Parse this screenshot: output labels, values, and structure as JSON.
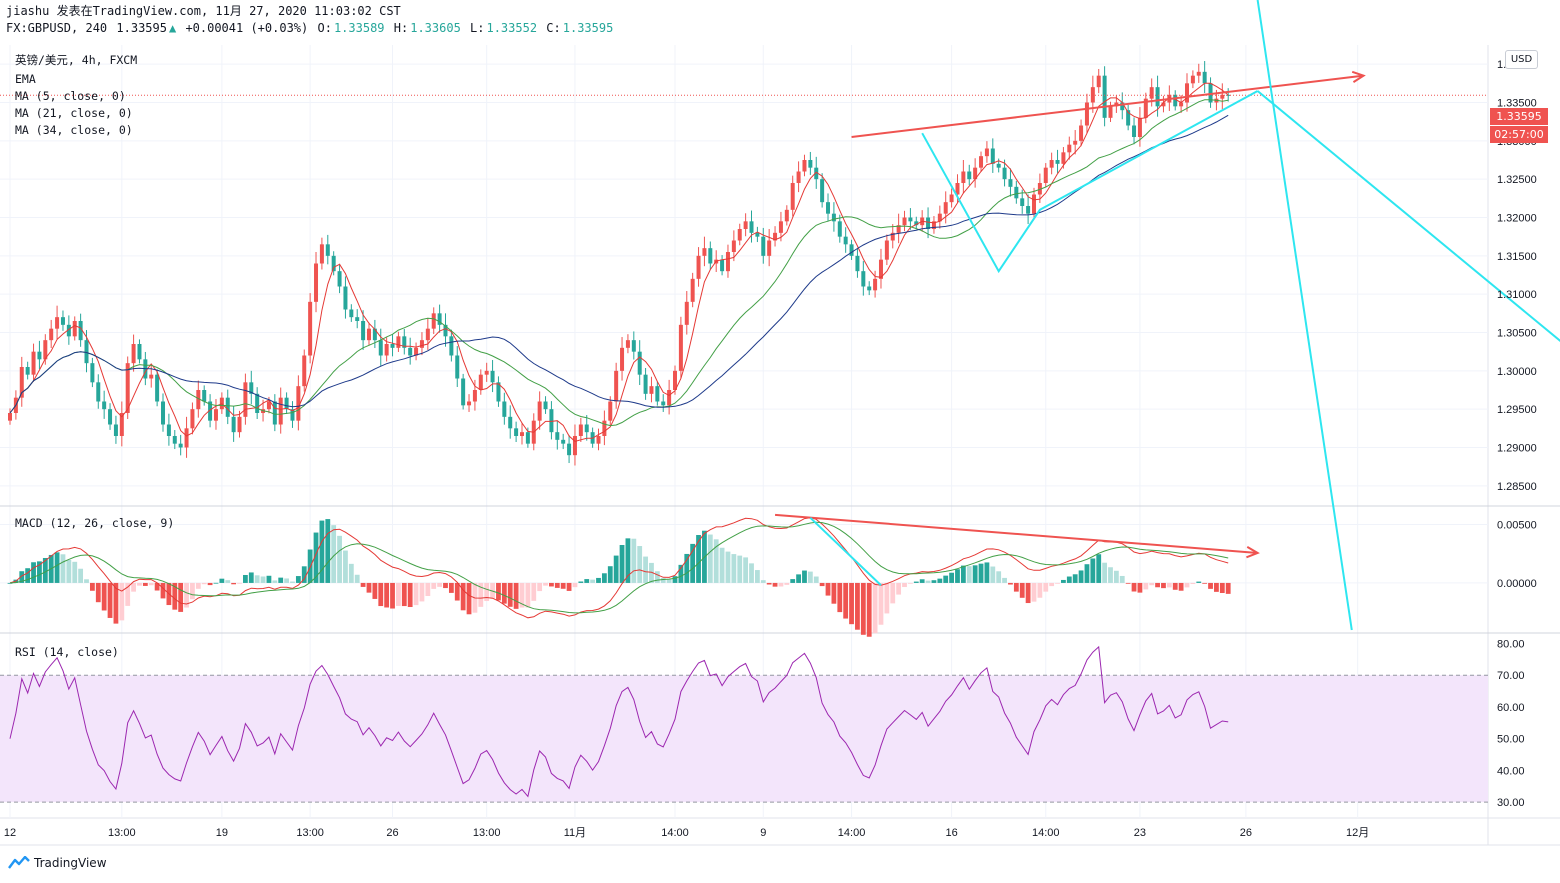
{
  "header": {
    "line1": "jiashu 发表在TradingView.com, 11月 27, 2020 11:03:02 CST",
    "symbol": "FX:GBPUSD, 240",
    "last": "1.33595",
    "change": "+0.00041 (+0.03%)",
    "o_label": "O:",
    "o": "1.33589",
    "h_label": "H:",
    "h": "1.33605",
    "l_label": "L:",
    "l": "1.33552",
    "c_label": "C:",
    "c": "1.33595"
  },
  "legend": {
    "title": "英镑/美元, 4h, FXCM",
    "ema": "EMA",
    "ma1": "MA (5, close, 0)",
    "ma2": "MA (21, close, 0)",
    "ma3": "MA (34, close, 0)",
    "macd": "MACD (12, 26, close, 9)",
    "rsi": "RSI (14, close)"
  },
  "currency": "USD",
  "price_tag": "1.33595",
  "timer_tag": "02:57:00",
  "branding": "TradingView",
  "colors": {
    "up": "#ef5350",
    "down": "#26a69a",
    "ma5": "#e53935",
    "ma21": "#43a047",
    "ma34": "#1e3a8a",
    "trend_red": "#ef5350",
    "trend_cyan": "#2ee6f0",
    "rsi": "#9c27b0",
    "rsi_band": "#f3e5fb"
  },
  "chart_data": [
    {
      "type": "candlestick",
      "title": "英镑/美元, 4h, FXCM",
      "ylabel": "USD",
      "ylim": [
        1.2825,
        1.3425
      ],
      "y_ticks": [
        "1.28500",
        "1.29000",
        "1.29500",
        "1.30000",
        "1.30500",
        "1.31000",
        "1.31500",
        "1.32000",
        "1.32500",
        "1.33000",
        "1.33500",
        "1.34000"
      ],
      "x_ticks": [
        "12",
        "13:00",
        "19",
        "13:00",
        "26",
        "13:00",
        "11月",
        "14:00",
        "9",
        "14:00",
        "16",
        "14:00",
        "23",
        "26",
        "12月"
      ],
      "x_tick_pos": [
        0,
        19,
        36,
        51,
        65,
        81,
        96,
        113,
        128,
        143,
        160,
        176,
        192,
        210,
        229
      ],
      "last_price": 1.33595,
      "close": [
        1.2945,
        1.2965,
        1.3005,
        1.2995,
        1.3025,
        1.3015,
        1.304,
        1.3055,
        1.307,
        1.306,
        1.3045,
        1.3065,
        1.304,
        1.301,
        1.2985,
        1.296,
        1.295,
        1.293,
        1.2915,
        1.2945,
        1.301,
        1.3035,
        1.3015,
        1.299,
        1.2995,
        1.296,
        1.293,
        1.2915,
        1.2905,
        1.29,
        1.2925,
        1.295,
        1.2975,
        1.296,
        1.2935,
        1.295,
        1.2965,
        1.294,
        1.292,
        1.294,
        1.2985,
        1.297,
        1.2945,
        1.295,
        1.296,
        1.293,
        1.2965,
        1.295,
        1.2935,
        1.298,
        1.302,
        1.309,
        1.314,
        1.3165,
        1.315,
        1.313,
        1.311,
        1.308,
        1.307,
        1.3065,
        1.304,
        1.3055,
        1.304,
        1.302,
        1.3035,
        1.303,
        1.3045,
        1.303,
        1.302,
        1.303,
        1.304,
        1.3055,
        1.3075,
        1.306,
        1.3045,
        1.302,
        1.299,
        1.2955,
        1.296,
        1.2975,
        1.2995,
        1.3,
        1.2985,
        1.296,
        1.294,
        1.2925,
        1.2915,
        1.292,
        1.2905,
        1.2935,
        1.296,
        1.295,
        1.292,
        1.291,
        1.2905,
        1.289,
        1.2915,
        1.293,
        1.292,
        1.2905,
        1.2915,
        1.2935,
        1.296,
        1.3,
        1.303,
        1.304,
        1.3025,
        1.2995,
        1.297,
        1.298,
        1.296,
        1.2955,
        1.2975,
        1.3,
        1.306,
        1.309,
        1.312,
        1.315,
        1.316,
        1.314,
        1.3145,
        1.313,
        1.3155,
        1.317,
        1.3185,
        1.3195,
        1.318,
        1.3175,
        1.315,
        1.317,
        1.318,
        1.3195,
        1.321,
        1.3245,
        1.326,
        1.3275,
        1.3265,
        1.325,
        1.322,
        1.3205,
        1.3195,
        1.3175,
        1.3165,
        1.315,
        1.313,
        1.311,
        1.3105,
        1.312,
        1.3145,
        1.317,
        1.318,
        1.319,
        1.32,
        1.3195,
        1.319,
        1.32,
        1.3185,
        1.3195,
        1.3205,
        1.322,
        1.323,
        1.3245,
        1.326,
        1.325,
        1.3265,
        1.328,
        1.329,
        1.327,
        1.3265,
        1.325,
        1.324,
        1.3225,
        1.3215,
        1.3205,
        1.323,
        1.3245,
        1.3265,
        1.3275,
        1.327,
        1.3285,
        1.3295,
        1.33,
        1.332,
        1.335,
        1.337,
        1.3385,
        1.333,
        1.3345,
        1.335,
        1.334,
        1.332,
        1.3305,
        1.333,
        1.3355,
        1.337,
        1.3345,
        1.335,
        1.336,
        1.3345,
        1.335,
        1.3375,
        1.3385,
        1.339,
        1.3375,
        1.335,
        1.3355,
        1.336,
        1.3359
      ],
      "open_close_note": "OHLC derived: open = previous close; wicks extend beyond body",
      "series": [
        {
          "name": "MA (5, close, 0)",
          "window": 5
        },
        {
          "name": "MA (21, close, 0)",
          "window": 21
        },
        {
          "name": "MA (34, close, 0)",
          "window": 34
        }
      ],
      "annotations": [
        {
          "kind": "trendline",
          "color": "red",
          "from": [
            143,
            1.3305
          ],
          "to": [
            230,
            1.3385
          ]
        },
        {
          "kind": "wedge",
          "color": "cyan",
          "points": [
            [
              155,
              1.331
            ],
            [
              168,
              1.313
            ],
            [
              175,
              1.321
            ],
            [
              212,
              1.3365
            ]
          ]
        },
        {
          "kind": "projection-arrow",
          "color": "cyan",
          "from": [
            212,
            1.3365
          ],
          "to": [
            268,
            1.301
          ]
        }
      ]
    },
    {
      "type": "macd",
      "title": "MACD (12, 26, close, 9)",
      "ylim": [
        -0.0042,
        0.0065
      ],
      "y_ticks": [
        "0.00500",
        "0.00000"
      ],
      "annotations": [
        {
          "kind": "trendline",
          "color": "red",
          "note": "divergence line from first peak to latest"
        },
        {
          "kind": "projection-arrow",
          "color": "cyan"
        }
      ]
    },
    {
      "type": "line",
      "title": "RSI (14, close)",
      "ylim": [
        25,
        83
      ],
      "y_ticks": [
        "80.00",
        "70.00",
        "60.00",
        "50.00",
        "40.00",
        "30.00"
      ],
      "band": [
        30,
        70
      ],
      "period": 14
    }
  ]
}
